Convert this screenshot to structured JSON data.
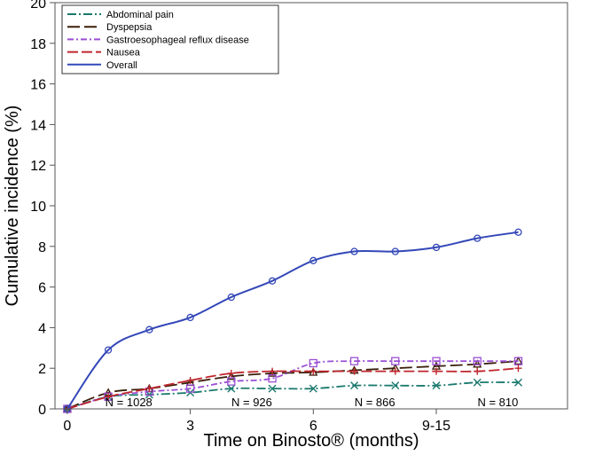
{
  "chart_data": {
    "type": "line",
    "xlabel": "Time on Binosto® (months)",
    "ylabel": "Cumulative incidence (%)",
    "xlim": [
      -0.3,
      12.2
    ],
    "ylim": [
      0,
      20
    ],
    "x_ticks": [
      {
        "x": 0,
        "label": "0"
      },
      {
        "x": 3,
        "label": "3"
      },
      {
        "x": 6,
        "label": "6"
      },
      {
        "x": 9,
        "label": "9-15"
      }
    ],
    "y_ticks": [
      0,
      2,
      4,
      6,
      8,
      10,
      12,
      14,
      16,
      18,
      20
    ],
    "n_at_risk": [
      {
        "x": 1.5,
        "label": "N = 1028"
      },
      {
        "x": 4.5,
        "label": "N = 926"
      },
      {
        "x": 7.5,
        "label": "N = 866"
      },
      {
        "x": 10.5,
        "label": "N = 810"
      }
    ],
    "legend_position": "top-left",
    "series": [
      {
        "name": "Abdominal pain",
        "color": "#1a7a6e",
        "dash": "10 3 2 3",
        "marker": "x",
        "x": [
          0,
          1,
          2,
          3,
          4,
          5,
          6,
          7,
          8,
          9,
          10,
          11
        ],
        "y": [
          0,
          0.6,
          0.7,
          0.8,
          1.0,
          1.0,
          1.0,
          1.15,
          1.15,
          1.15,
          1.3,
          1.3
        ]
      },
      {
        "name": "Dyspepsia",
        "color": "#3a1f0a",
        "dash": "14 5",
        "marker": "triangle",
        "x": [
          0,
          1,
          2,
          3,
          4,
          5,
          6,
          7,
          8,
          9,
          10,
          11
        ],
        "y": [
          0,
          0.8,
          1.0,
          1.3,
          1.6,
          1.75,
          1.8,
          1.9,
          2.0,
          2.1,
          2.2,
          2.35
        ]
      },
      {
        "name": "Gastroesophageal reflux disease",
        "color": "#9b4fd4",
        "dash": "7 3 2 3",
        "marker": "square",
        "x": [
          0,
          1,
          2,
          3,
          4,
          5,
          6,
          7,
          8,
          9,
          10,
          11
        ],
        "y": [
          0,
          0.6,
          0.85,
          1.0,
          1.35,
          1.5,
          2.25,
          2.35,
          2.35,
          2.35,
          2.35,
          2.35
        ]
      },
      {
        "name": "Nausea",
        "color": "#c0262d",
        "dash": "12 4",
        "marker": "plus",
        "x": [
          0,
          1,
          2,
          3,
          4,
          5,
          6,
          7,
          8,
          9,
          10,
          11
        ],
        "y": [
          0,
          0.6,
          1.0,
          1.4,
          1.75,
          1.85,
          1.85,
          1.85,
          1.85,
          1.85,
          1.85,
          2.0
        ]
      },
      {
        "name": "Overall",
        "color": "#3448b8",
        "dash": "",
        "marker": "circle",
        "x": [
          0,
          1,
          2,
          3,
          4,
          5,
          6,
          7,
          8,
          9,
          10,
          11
        ],
        "y": [
          0,
          2.9,
          3.9,
          4.5,
          5.5,
          6.3,
          7.3,
          7.75,
          7.75,
          7.95,
          8.4,
          8.7
        ]
      }
    ]
  }
}
